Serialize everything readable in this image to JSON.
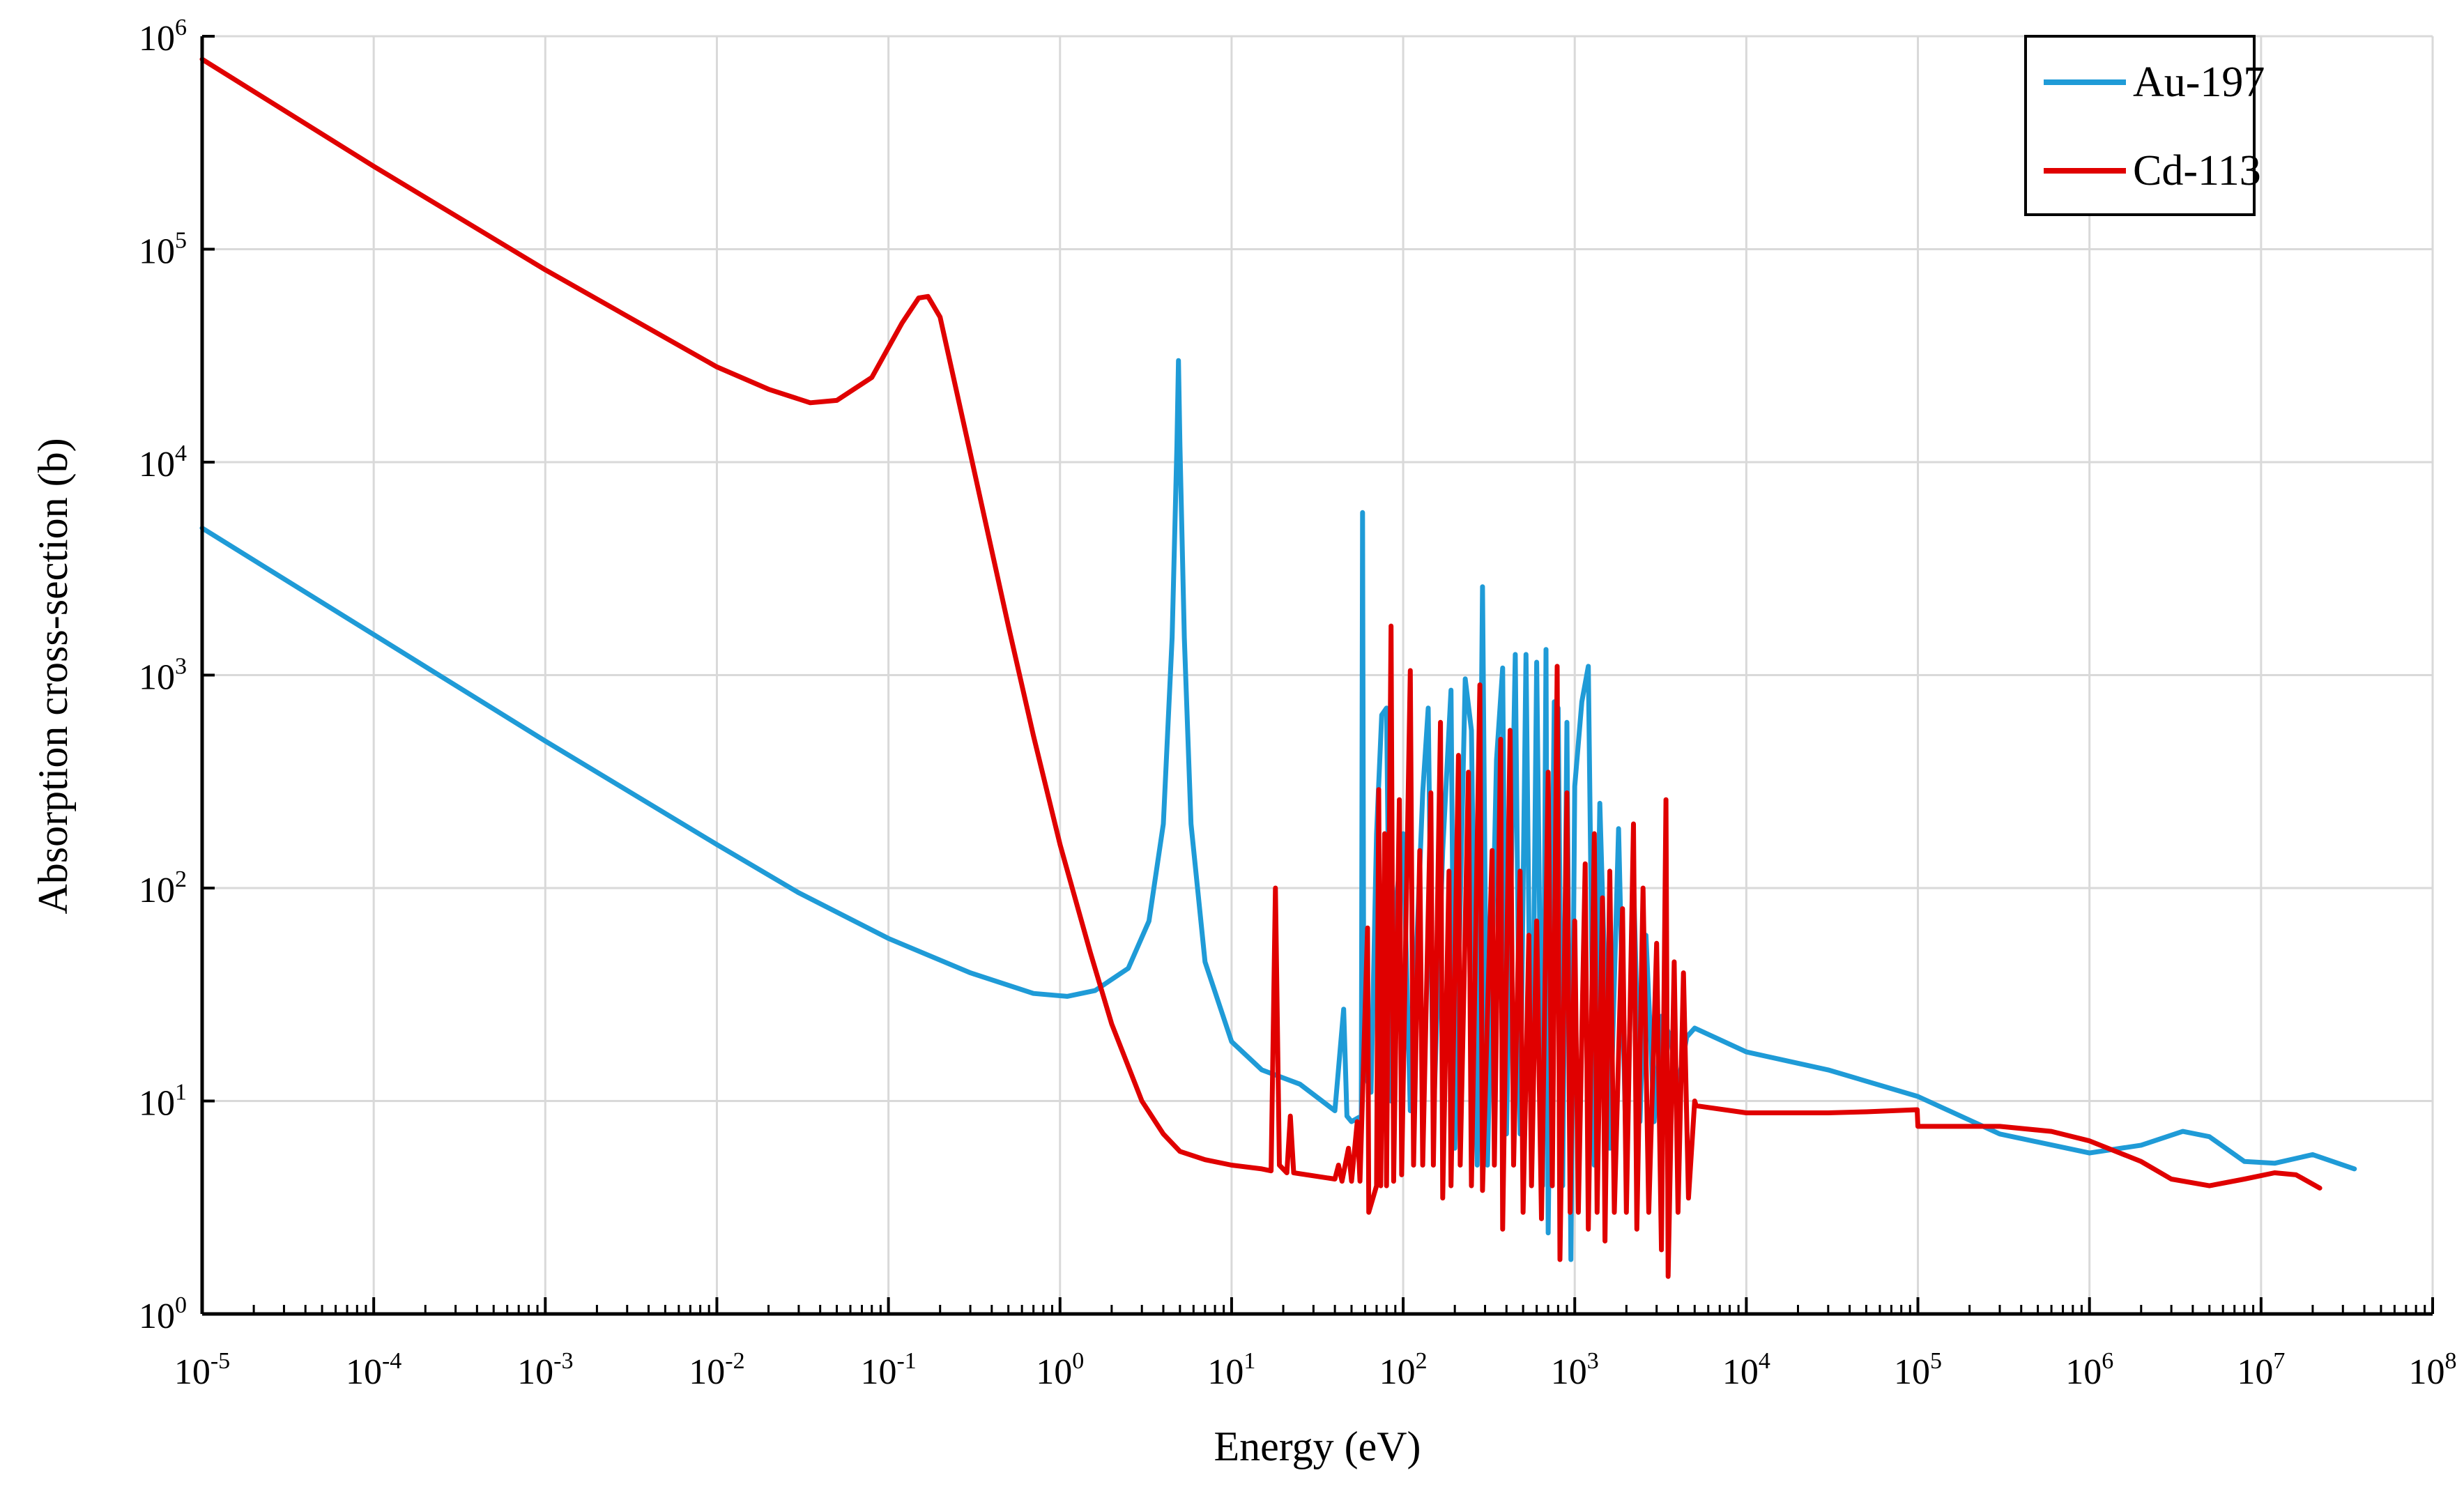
{
  "chart_data": {
    "type": "line",
    "title": "",
    "xlabel": "Energy (eV)",
    "ylabel": "Absorption cross-section (b)",
    "x_scale": "log",
    "y_scale": "log",
    "xlim": [
      1e-05,
      100000000.0
    ],
    "ylim": [
      1,
      1000000.0
    ],
    "grid": true,
    "legend_position": "top-right",
    "x_ticks": [
      {
        "base": "10",
        "exp": "-5"
      },
      {
        "base": "10",
        "exp": "-4"
      },
      {
        "base": "10",
        "exp": "-3"
      },
      {
        "base": "10",
        "exp": "-2"
      },
      {
        "base": "10",
        "exp": "-1"
      },
      {
        "base": "10",
        "exp": "0"
      },
      {
        "base": "10",
        "exp": "1"
      },
      {
        "base": "10",
        "exp": "2"
      },
      {
        "base": "10",
        "exp": "3"
      },
      {
        "base": "10",
        "exp": "4"
      },
      {
        "base": "10",
        "exp": "5"
      },
      {
        "base": "10",
        "exp": "6"
      },
      {
        "base": "10",
        "exp": "7"
      },
      {
        "base": "10",
        "exp": "8"
      }
    ],
    "y_ticks": [
      {
        "base": "10",
        "exp": "0"
      },
      {
        "base": "10",
        "exp": "1"
      },
      {
        "base": "10",
        "exp": "2"
      },
      {
        "base": "10",
        "exp": "3"
      },
      {
        "base": "10",
        "exp": "4"
      },
      {
        "base": "10",
        "exp": "5"
      },
      {
        "base": "10",
        "exp": "6"
      }
    ],
    "series": [
      {
        "name": "Au-197",
        "color": "#1f9bd7",
        "points": [
          [
            1e-05,
            4900
          ],
          [
            0.0001,
            1550
          ],
          [
            0.001,
            490
          ],
          [
            0.01,
            160
          ],
          [
            0.03,
            95
          ],
          [
            0.1,
            58
          ],
          [
            0.3,
            40
          ],
          [
            0.7,
            32
          ],
          [
            1.1,
            31
          ],
          [
            1.6,
            33
          ],
          [
            2.5,
            42
          ],
          [
            3.3,
            70
          ],
          [
            4.0,
            200
          ],
          [
            4.5,
            1500
          ],
          [
            4.8,
            12000
          ],
          [
            4.9,
            30000
          ],
          [
            5.0,
            12000
          ],
          [
            5.3,
            1500
          ],
          [
            5.8,
            200
          ],
          [
            7.0,
            45
          ],
          [
            10,
            19
          ],
          [
            15,
            14
          ],
          [
            25,
            12
          ],
          [
            40,
            9
          ],
          [
            45,
            27
          ],
          [
            47,
            8.5
          ],
          [
            50,
            8
          ],
          [
            57,
            8.5
          ],
          [
            58,
            5800
          ],
          [
            59,
            14
          ],
          [
            65,
            11
          ],
          [
            70,
            180
          ],
          [
            75,
            650
          ],
          [
            80,
            700
          ],
          [
            85,
            10
          ],
          [
            90,
            80
          ],
          [
            100,
            180
          ],
          [
            110,
            9
          ],
          [
            130,
            280
          ],
          [
            140,
            700
          ],
          [
            150,
            8
          ],
          [
            170,
            150
          ],
          [
            190,
            850
          ],
          [
            200,
            6
          ],
          [
            230,
            960
          ],
          [
            250,
            550
          ],
          [
            270,
            5
          ],
          [
            290,
            2600
          ],
          [
            310,
            5
          ],
          [
            350,
            400
          ],
          [
            380,
            1080
          ],
          [
            400,
            7
          ],
          [
            450,
            1250
          ],
          [
            480,
            7
          ],
          [
            520,
            1250
          ],
          [
            560,
            5
          ],
          [
            600,
            1150
          ],
          [
            650,
            4
          ],
          [
            680,
            1320
          ],
          [
            700,
            2.4
          ],
          [
            760,
            750
          ],
          [
            800,
            700
          ],
          [
            850,
            4
          ],
          [
            900,
            600
          ],
          [
            950,
            1.8
          ],
          [
            1000,
            300
          ],
          [
            1100,
            750
          ],
          [
            1200,
            1100
          ],
          [
            1300,
            5
          ],
          [
            1400,
            250
          ],
          [
            1600,
            6
          ],
          [
            1800,
            190
          ],
          [
            2000,
            5
          ],
          [
            2200,
            110
          ],
          [
            2400,
            8
          ],
          [
            2600,
            60
          ],
          [
            2900,
            8
          ],
          [
            3200,
            25
          ],
          [
            3600,
            20
          ],
          [
            4000,
            12
          ],
          [
            4500,
            20
          ],
          [
            5000,
            22
          ],
          [
            10000.0,
            17
          ],
          [
            30000.0,
            14
          ],
          [
            100000.0,
            10.5
          ],
          [
            300000.0,
            7
          ],
          [
            1000000.0,
            5.7
          ],
          [
            2000000.0,
            6.2
          ],
          [
            3500000.0,
            7.2
          ],
          [
            5000000.0,
            6.8
          ],
          [
            8000000.0,
            5.2
          ],
          [
            12000000.0,
            5.1
          ],
          [
            20000000.0,
            5.6
          ],
          [
            35000000.0,
            4.8
          ]
        ]
      },
      {
        "name": "Cd-113",
        "color": "#e00000",
        "points": [
          [
            1e-05,
            780000
          ],
          [
            0.0001,
            245000
          ],
          [
            0.001,
            80000
          ],
          [
            0.01,
            28000
          ],
          [
            0.02,
            22000
          ],
          [
            0.035,
            19000
          ],
          [
            0.05,
            19500
          ],
          [
            0.08,
            25000
          ],
          [
            0.12,
            45000
          ],
          [
            0.15,
            59000
          ],
          [
            0.17,
            60000
          ],
          [
            0.2,
            48000
          ],
          [
            0.3,
            11000
          ],
          [
            0.5,
            1700
          ],
          [
            0.7,
            520
          ],
          [
            1.0,
            160
          ],
          [
            1.5,
            50
          ],
          [
            2,
            23
          ],
          [
            3,
            10
          ],
          [
            4,
            7
          ],
          [
            5,
            5.8
          ],
          [
            7,
            5.3
          ],
          [
            10,
            5
          ],
          [
            15,
            4.8
          ],
          [
            17,
            4.7
          ],
          [
            18,
            100
          ],
          [
            19,
            5
          ],
          [
            21,
            4.6
          ],
          [
            22,
            8.5
          ],
          [
            23,
            4.6
          ],
          [
            40,
            4.3
          ],
          [
            42,
            5
          ],
          [
            44,
            4.2
          ],
          [
            48,
            6
          ],
          [
            50,
            4.2
          ],
          [
            54,
            8
          ],
          [
            56,
            4.2
          ],
          [
            62,
            65
          ],
          [
            63,
            3
          ],
          [
            70,
            4
          ],
          [
            72,
            290
          ],
          [
            74,
            4
          ],
          [
            78,
            180
          ],
          [
            80,
            4
          ],
          [
            85,
            1700
          ],
          [
            88,
            4.2
          ],
          [
            95,
            260
          ],
          [
            98,
            4.5
          ],
          [
            110,
            1050
          ],
          [
            115,
            5
          ],
          [
            125,
            150
          ],
          [
            130,
            5
          ],
          [
            145,
            280
          ],
          [
            150,
            5
          ],
          [
            165,
            600
          ],
          [
            170,
            3.5
          ],
          [
            185,
            120
          ],
          [
            190,
            4
          ],
          [
            210,
            420
          ],
          [
            215,
            5
          ],
          [
            240,
            350
          ],
          [
            250,
            4
          ],
          [
            280,
            900
          ],
          [
            290,
            3.8
          ],
          [
            330,
            150
          ],
          [
            340,
            5
          ],
          [
            370,
            500
          ],
          [
            380,
            2.5
          ],
          [
            420,
            550
          ],
          [
            440,
            5
          ],
          [
            480,
            120
          ],
          [
            500,
            3
          ],
          [
            540,
            60
          ],
          [
            560,
            4
          ],
          [
            600,
            70
          ],
          [
            640,
            2.8
          ],
          [
            700,
            350
          ],
          [
            740,
            4
          ],
          [
            790,
            1100
          ],
          [
            820,
            1.8
          ],
          [
            900,
            280
          ],
          [
            940,
            3
          ],
          [
            1000,
            70
          ],
          [
            1050,
            3
          ],
          [
            1150,
            130
          ],
          [
            1200,
            2.5
          ],
          [
            1300,
            180
          ],
          [
            1350,
            3
          ],
          [
            1450,
            90
          ],
          [
            1500,
            2.2
          ],
          [
            1600,
            120
          ],
          [
            1700,
            3
          ],
          [
            1900,
            80
          ],
          [
            2000,
            3
          ],
          [
            2200,
            200
          ],
          [
            2300,
            2.5
          ],
          [
            2500,
            100
          ],
          [
            2700,
            3
          ],
          [
            3000,
            55
          ],
          [
            3200,
            2
          ],
          [
            3400,
            260
          ],
          [
            3500,
            1.5
          ],
          [
            3800,
            45
          ],
          [
            4000,
            3
          ],
          [
            4300,
            40
          ],
          [
            4600,
            3.5
          ],
          [
            5000,
            10
          ],
          [
            5100,
            9.5
          ],
          [
            10000.0,
            8.8
          ],
          [
            30000.0,
            8.8
          ],
          [
            50000.0,
            8.9
          ],
          [
            99000.0,
            9.1
          ],
          [
            100000.0,
            7.6
          ],
          [
            300000.0,
            7.6
          ],
          [
            600000.0,
            7.2
          ],
          [
            1000000.0,
            6.5
          ],
          [
            2000000.0,
            5.2
          ],
          [
            3000000.0,
            4.3
          ],
          [
            5000000.0,
            4.0
          ],
          [
            8000000.0,
            4.3
          ],
          [
            12000000.0,
            4.6
          ],
          [
            16000000.0,
            4.5
          ],
          [
            22000000.0,
            3.9
          ]
        ]
      }
    ]
  }
}
